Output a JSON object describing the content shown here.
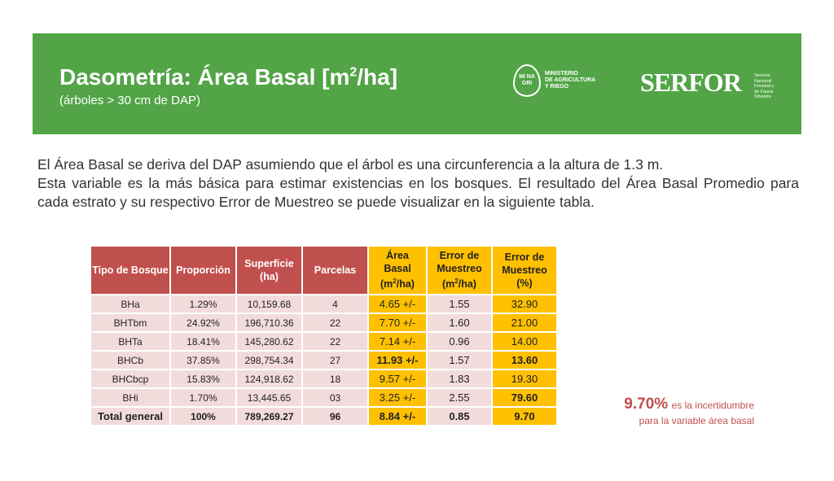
{
  "header": {
    "title_main": "Dasometría: Área Basal [m",
    "title_sup": "2",
    "title_end": "/ha]",
    "subtitle": "(árboles > 30 cm de DAP)",
    "minagri_mark": "MI NA GRI",
    "minagri_text_1": "MINISTERIO",
    "minagri_text_2": "DE AGRICULTURA",
    "minagri_text_3": "Y RIEGO",
    "serfor": "SERFOR",
    "serfor_sub_1": "Servicio",
    "serfor_sub_2": "Nacional",
    "serfor_sub_3": "Forestal y",
    "serfor_sub_4": "de Fauna",
    "serfor_sub_5": "Silvestre"
  },
  "intro": {
    "line1": "El Área Basal se deriva del DAP asumiendo que el árbol es una circunferencia a la altura de 1.3 m.",
    "line2": "Esta variable es la más básica para estimar existencias en los bosques. El resultado del Área Basal Promedio para cada estrato y su respectivo Error de Muestreo se puede visualizar en la siguiente tabla."
  },
  "table": {
    "headers": [
      "Tipo de Bosque",
      "Proporción",
      "Superficie (ha)",
      "Parcelas",
      "Área Basal (m2/ha)",
      "Error de Muestreo (m2/ha)",
      "Error de Muestreo (%)"
    ],
    "rows": [
      [
        "BHa",
        "1.29%",
        "10,159.68",
        "4",
        "4.65 +/-",
        "1.55",
        "32.90"
      ],
      [
        "BHTbm",
        "24.92%",
        "196,710.36",
        "22",
        "7.70 +/-",
        "1.60",
        "21.00"
      ],
      [
        "BHTa",
        "18.41%",
        "145,280.62",
        "22",
        "7.14 +/-",
        "0.96",
        "14.00"
      ],
      [
        "BHCb",
        "37.85%",
        "298,754.34",
        "27",
        "11.93 +/-",
        "1.57",
        "13.60"
      ],
      [
        "BHCbcp",
        "15.83%",
        "124,918.62",
        "18",
        "9.57 +/-",
        "1.83",
        "19.30"
      ],
      [
        "BHi",
        "1.70%",
        "13,445.65",
        "03",
        "3.25 +/-",
        "2.55",
        "79.60"
      ]
    ],
    "total": [
      "Total general",
      "100%",
      "789,269.27",
      "96",
      "8.84 +/-",
      "0.85",
      "9.70"
    ]
  },
  "note": {
    "value": "9.70%",
    "text1": "es la incertidumbre",
    "text2": "para la variable área basal"
  },
  "colors": {
    "banner": "#52a446",
    "header_red": "#c0504d",
    "highlight": "#ffc000",
    "cell": "#f2dcdb"
  }
}
